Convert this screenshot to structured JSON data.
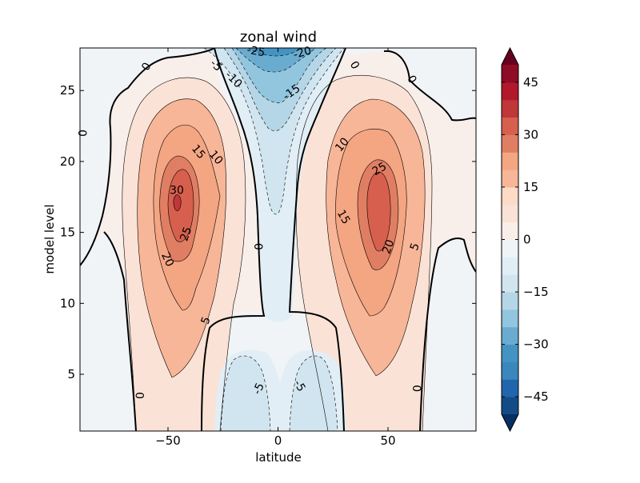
{
  "chart_data": {
    "type": "contour",
    "title": "zonal wind",
    "xlabel": "latitude",
    "ylabel": "model level",
    "xlim": [
      -90,
      90
    ],
    "ylim": [
      1,
      28
    ],
    "x_ticks": [
      -50,
      0,
      50
    ],
    "y_ticks": [
      5,
      10,
      15,
      20,
      25
    ],
    "grid": false,
    "colormap": "RdBu_r",
    "colorbar": {
      "ticks": [
        -45,
        -30,
        -15,
        0,
        15,
        30,
        45
      ],
      "levels": [
        -50,
        -45,
        -40,
        -35,
        -30,
        -25,
        -20,
        -15,
        -10,
        -5,
        0,
        5,
        10,
        15,
        20,
        25,
        30,
        35,
        40,
        45,
        50
      ],
      "extend": "both",
      "colors": [
        "#053061",
        "#134b87",
        "#2166ac",
        "#3a87bd",
        "#4393c3",
        "#6aacd0",
        "#92c5de",
        "#b4d6e7",
        "#d1e5f0",
        "#e2eef5",
        "#f0f4f7",
        "#f9efea",
        "#fbe2d6",
        "#fddbc7",
        "#f7b698",
        "#f4a582",
        "#e07e64",
        "#d6604d",
        "#c13639",
        "#b2182b",
        "#8e0c25",
        "#67001f"
      ]
    },
    "contour_labels": [
      {
        "text": "0",
        "lat": -60,
        "lev": 26.7,
        "rot": -60
      },
      {
        "text": "0",
        "lat": -89,
        "lev": 22.0,
        "rot": 90
      },
      {
        "text": "0",
        "lat": -63,
        "lev": 3.5,
        "rot": 90
      },
      {
        "text": "0",
        "lat": -9,
        "lev": 14.0,
        "rot": 90
      },
      {
        "text": "0",
        "lat": 35,
        "lev": 26.8,
        "rot": 60
      },
      {
        "text": "0",
        "lat": 61,
        "lev": 25.8,
        "rot": 60
      },
      {
        "text": "0",
        "lat": 63,
        "lev": 4.0,
        "rot": 90
      },
      {
        "text": "-5",
        "lat": -28,
        "lev": 26.8,
        "rot": 45
      },
      {
        "text": "-10",
        "lat": -20,
        "lev": 25.8,
        "rot": 45
      },
      {
        "text": "-25",
        "lat": -10,
        "lev": 27.8,
        "rot": 10
      },
      {
        "text": "-20",
        "lat": 11,
        "lev": 27.7,
        "rot": -15
      },
      {
        "text": "-15",
        "lat": 6,
        "lev": 24.9,
        "rot": -35
      },
      {
        "text": "-5",
        "lat": -9,
        "lev": 4.0,
        "rot": -65
      },
      {
        "text": "-5",
        "lat": 10,
        "lev": 4.2,
        "rot": 60
      },
      {
        "text": "15",
        "lat": -36,
        "lev": 20.7,
        "rot": 50
      },
      {
        "text": "10",
        "lat": -28,
        "lev": 20.3,
        "rot": 50
      },
      {
        "text": "30",
        "lat": -46,
        "lev": 18.0,
        "rot": 0
      },
      {
        "text": "25",
        "lat": -42,
        "lev": 14.9,
        "rot": -70
      },
      {
        "text": "20",
        "lat": -50,
        "lev": 13.1,
        "rot": 65
      },
      {
        "text": "5",
        "lat": -33,
        "lev": 8.8,
        "rot": -70
      },
      {
        "text": "10",
        "lat": 29,
        "lev": 21.2,
        "rot": -50
      },
      {
        "text": "25",
        "lat": 46,
        "lev": 19.5,
        "rot": -30
      },
      {
        "text": "15",
        "lat": 30,
        "lev": 16.1,
        "rot": 60
      },
      {
        "text": "20",
        "lat": 50,
        "lev": 14.0,
        "rot": -70
      },
      {
        "text": "5",
        "lat": 62,
        "lev": 14.0,
        "rot": -70
      }
    ]
  }
}
